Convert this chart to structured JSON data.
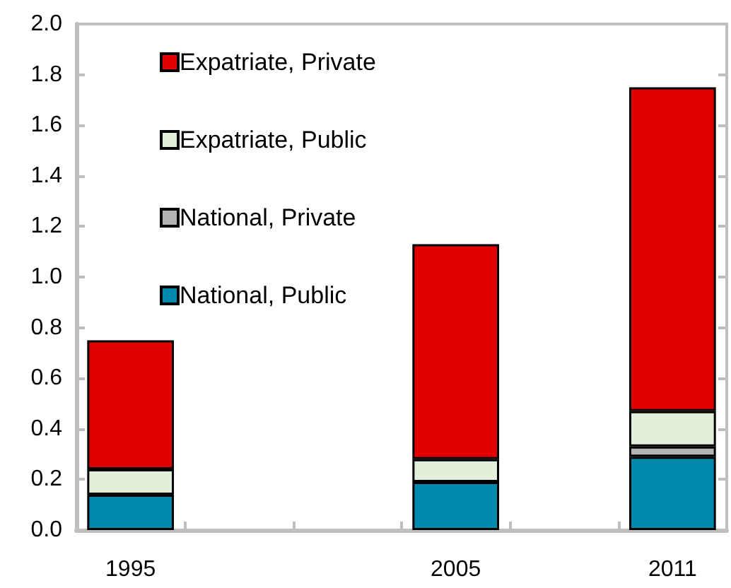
{
  "chart_data": {
    "type": "bar",
    "stacked": true,
    "categories": [
      "1995",
      null,
      null,
      "2005",
      null,
      "2011"
    ],
    "series": [
      {
        "name": "National, Public",
        "color": "#0088ad",
        "values": [
          0.14,
          null,
          null,
          0.19,
          null,
          0.29
        ]
      },
      {
        "name": "National, Private",
        "color": "#b4b4b4",
        "values": [
          null,
          null,
          null,
          null,
          null,
          0.04
        ]
      },
      {
        "name": "Expatriate, Public",
        "color": "#e2efda",
        "values": [
          0.1,
          null,
          null,
          0.09,
          null,
          0.14
        ]
      },
      {
        "name": "Expatriate, Private",
        "color": "#e00000",
        "values": [
          0.51,
          null,
          null,
          0.85,
          null,
          1.28
        ]
      }
    ],
    "ylim": [
      0,
      2
    ],
    "yticks": [
      {
        "value": 0,
        "label": "0.0"
      },
      0.2,
      0.4,
      0.6,
      0.8,
      {
        "value": 1,
        "label": "1.0"
      },
      1.2,
      1.4,
      1.6,
      1.8,
      {
        "value": 2,
        "label": "2.0"
      }
    ],
    "legend": "top left"
  }
}
